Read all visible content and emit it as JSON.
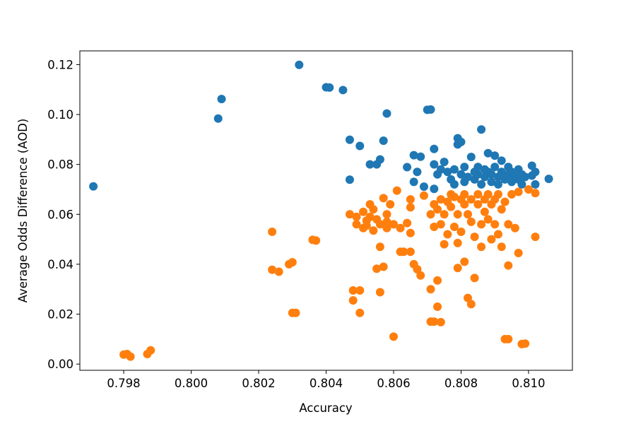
{
  "chart_data": {
    "type": "scatter",
    "title": "",
    "xlabel": "Accuracy",
    "ylabel": "Average Odds Difference (AOD)",
    "xlim": [
      0.7967,
      0.8113
    ],
    "ylim": [
      -0.0025,
      0.1255
    ],
    "xticks": [
      0.798,
      0.8,
      0.802,
      0.804,
      0.806,
      0.808,
      0.81
    ],
    "xtick_labels": [
      "0.798",
      "0.800",
      "0.802",
      "0.804",
      "0.806",
      "0.808",
      "0.810"
    ],
    "yticks": [
      0.0,
      0.02,
      0.04,
      0.06,
      0.08,
      0.1,
      0.12
    ],
    "ytick_labels": [
      "0.00",
      "0.02",
      "0.04",
      "0.06",
      "0.08",
      "0.10",
      "0.12"
    ],
    "grid": false,
    "legend": "none",
    "series": [
      {
        "color": "#1f77b4",
        "points": [
          [
            0.7971,
            0.0712
          ],
          [
            0.8008,
            0.0984
          ],
          [
            0.8009,
            0.1062
          ],
          [
            0.8032,
            0.1199
          ],
          [
            0.804,
            0.1109
          ],
          [
            0.8041,
            0.1108
          ],
          [
            0.8045,
            0.1098
          ],
          [
            0.8047,
            0.0899
          ],
          [
            0.8047,
            0.0739
          ],
          [
            0.805,
            0.0874
          ],
          [
            0.8053,
            0.08
          ],
          [
            0.8055,
            0.08
          ],
          [
            0.8056,
            0.082
          ],
          [
            0.8057,
            0.0895
          ],
          [
            0.8058,
            0.1004
          ],
          [
            0.8064,
            0.0789
          ],
          [
            0.8066,
            0.0837
          ],
          [
            0.8066,
            0.073
          ],
          [
            0.8067,
            0.077
          ],
          [
            0.8068,
            0.0831
          ],
          [
            0.8069,
            0.0711
          ],
          [
            0.807,
            0.1019
          ],
          [
            0.8071,
            0.102
          ],
          [
            0.8072,
            0.0702
          ],
          [
            0.8072,
            0.0862
          ],
          [
            0.8072,
            0.08
          ],
          [
            0.8073,
            0.076
          ],
          [
            0.8074,
            0.078
          ],
          [
            0.8075,
            0.081
          ],
          [
            0.8076,
            0.077
          ],
          [
            0.8077,
            0.074
          ],
          [
            0.8078,
            0.078
          ],
          [
            0.8078,
            0.072
          ],
          [
            0.8079,
            0.0905
          ],
          [
            0.8079,
            0.088
          ],
          [
            0.808,
            0.076
          ],
          [
            0.808,
            0.089
          ],
          [
            0.8081,
            0.073
          ],
          [
            0.8081,
            0.079
          ],
          [
            0.8082,
            0.075
          ],
          [
            0.8083,
            0.083
          ],
          [
            0.8084,
            0.074
          ],
          [
            0.8084,
            0.077
          ],
          [
            0.8085,
            0.076
          ],
          [
            0.8085,
            0.079
          ],
          [
            0.8086,
            0.094
          ],
          [
            0.8086,
            0.072
          ],
          [
            0.8087,
            0.075
          ],
          [
            0.8087,
            0.078
          ],
          [
            0.8088,
            0.077
          ],
          [
            0.8088,
            0.0845
          ],
          [
            0.8089,
            0.073
          ],
          [
            0.8089,
            0.076
          ],
          [
            0.809,
            0.0835
          ],
          [
            0.809,
            0.079
          ],
          [
            0.8091,
            0.075
          ],
          [
            0.8091,
            0.072
          ],
          [
            0.8092,
            0.0815
          ],
          [
            0.8092,
            0.077
          ],
          [
            0.8093,
            0.074
          ],
          [
            0.8094,
            0.076
          ],
          [
            0.8094,
            0.079
          ],
          [
            0.8095,
            0.073
          ],
          [
            0.8095,
            0.077
          ],
          [
            0.8096,
            0.075
          ],
          [
            0.8097,
            0.078
          ],
          [
            0.8097,
            0.074
          ],
          [
            0.8098,
            0.076
          ],
          [
            0.8098,
            0.072
          ],
          [
            0.8099,
            0.075
          ],
          [
            0.8101,
            0.0795
          ],
          [
            0.8101,
            0.0755
          ],
          [
            0.8102,
            0.077
          ],
          [
            0.8102,
            0.072
          ],
          [
            0.8106,
            0.0742
          ]
        ]
      },
      {
        "color": "#ff7f0e",
        "points": [
          [
            0.798,
            0.0038
          ],
          [
            0.7981,
            0.004
          ],
          [
            0.7982,
            0.003
          ],
          [
            0.7987,
            0.004
          ],
          [
            0.7988,
            0.0055
          ],
          [
            0.8024,
            0.053
          ],
          [
            0.8024,
            0.0378
          ],
          [
            0.8026,
            0.037
          ],
          [
            0.8029,
            0.04
          ],
          [
            0.803,
            0.0408
          ],
          [
            0.803,
            0.0205
          ],
          [
            0.8031,
            0.0205
          ],
          [
            0.8036,
            0.0498
          ],
          [
            0.8037,
            0.0495
          ],
          [
            0.8047,
            0.06
          ],
          [
            0.8048,
            0.0295
          ],
          [
            0.8048,
            0.0255
          ],
          [
            0.8049,
            0.059
          ],
          [
            0.8049,
            0.056
          ],
          [
            0.805,
            0.0295
          ],
          [
            0.805,
            0.0205
          ],
          [
            0.8051,
            0.0545
          ],
          [
            0.8051,
            0.061
          ],
          [
            0.8052,
            0.0575
          ],
          [
            0.8052,
            0.0555
          ],
          [
            0.8053,
            0.064
          ],
          [
            0.8053,
            0.059
          ],
          [
            0.8054,
            0.0535
          ],
          [
            0.8054,
            0.062
          ],
          [
            0.8055,
            0.058
          ],
          [
            0.8055,
            0.0382
          ],
          [
            0.8056,
            0.056
          ],
          [
            0.8056,
            0.047
          ],
          [
            0.8056,
            0.0288
          ],
          [
            0.8057,
            0.039
          ],
          [
            0.8057,
            0.0665
          ],
          [
            0.8058,
            0.06
          ],
          [
            0.8058,
            0.057
          ],
          [
            0.8058,
            0.0545
          ],
          [
            0.8059,
            0.064
          ],
          [
            0.806,
            0.011
          ],
          [
            0.806,
            0.056
          ],
          [
            0.8061,
            0.0695
          ],
          [
            0.8062,
            0.0545
          ],
          [
            0.8062,
            0.045
          ],
          [
            0.8063,
            0.045
          ],
          [
            0.8064,
            0.0565
          ],
          [
            0.8065,
            0.0525
          ],
          [
            0.8065,
            0.045
          ],
          [
            0.8065,
            0.0628
          ],
          [
            0.8065,
            0.066
          ],
          [
            0.8066,
            0.04
          ],
          [
            0.8067,
            0.038
          ],
          [
            0.8068,
            0.0355
          ],
          [
            0.8069,
            0.0675
          ],
          [
            0.8071,
            0.06
          ],
          [
            0.8071,
            0.03
          ],
          [
            0.8071,
            0.017
          ],
          [
            0.8072,
            0.017
          ],
          [
            0.8072,
            0.064
          ],
          [
            0.8072,
            0.055
          ],
          [
            0.8073,
            0.023
          ],
          [
            0.8073,
            0.0335
          ],
          [
            0.8073,
            0.062
          ],
          [
            0.8074,
            0.0168
          ],
          [
            0.8074,
            0.066
          ],
          [
            0.8074,
            0.056
          ],
          [
            0.8075,
            0.06
          ],
          [
            0.8075,
            0.048
          ],
          [
            0.8076,
            0.065
          ],
          [
            0.8076,
            0.052
          ],
          [
            0.8077,
            0.063
          ],
          [
            0.8077,
            0.068
          ],
          [
            0.8078,
            0.055
          ],
          [
            0.8078,
            0.067
          ],
          [
            0.8079,
            0.0385
          ],
          [
            0.8079,
            0.0485
          ],
          [
            0.8079,
            0.06
          ],
          [
            0.808,
            0.066
          ],
          [
            0.808,
            0.053
          ],
          [
            0.8081,
            0.041
          ],
          [
            0.8081,
            0.064
          ],
          [
            0.8081,
            0.068
          ],
          [
            0.8082,
            0.06
          ],
          [
            0.8082,
            0.0265
          ],
          [
            0.8083,
            0.057
          ],
          [
            0.8083,
            0.066
          ],
          [
            0.8083,
            0.024
          ],
          [
            0.8084,
            0.0345
          ],
          [
            0.8084,
            0.051
          ],
          [
            0.8085,
            0.064
          ],
          [
            0.8085,
            0.068
          ],
          [
            0.8086,
            0.056
          ],
          [
            0.8086,
            0.047
          ],
          [
            0.8087,
            0.061
          ],
          [
            0.8087,
            0.066
          ],
          [
            0.8088,
            0.058
          ],
          [
            0.8088,
            0.068
          ],
          [
            0.8089,
            0.064
          ],
          [
            0.8089,
            0.05
          ],
          [
            0.809,
            0.056
          ],
          [
            0.809,
            0.066
          ],
          [
            0.8091,
            0.052
          ],
          [
            0.8091,
            0.068
          ],
          [
            0.8092,
            0.047
          ],
          [
            0.8092,
            0.062
          ],
          [
            0.8093,
            0.01
          ],
          [
            0.8093,
            0.065
          ],
          [
            0.8094,
            0.01
          ],
          [
            0.8094,
            0.056
          ],
          [
            0.8094,
            0.0395
          ],
          [
            0.8095,
            0.068
          ],
          [
            0.8096,
            0.0545
          ],
          [
            0.8097,
            0.069
          ],
          [
            0.8097,
            0.0445
          ],
          [
            0.8098,
            0.008
          ],
          [
            0.8099,
            0.0082
          ],
          [
            0.81,
            0.07
          ],
          [
            0.8102,
            0.0685
          ],
          [
            0.8102,
            0.051
          ]
        ]
      }
    ]
  }
}
